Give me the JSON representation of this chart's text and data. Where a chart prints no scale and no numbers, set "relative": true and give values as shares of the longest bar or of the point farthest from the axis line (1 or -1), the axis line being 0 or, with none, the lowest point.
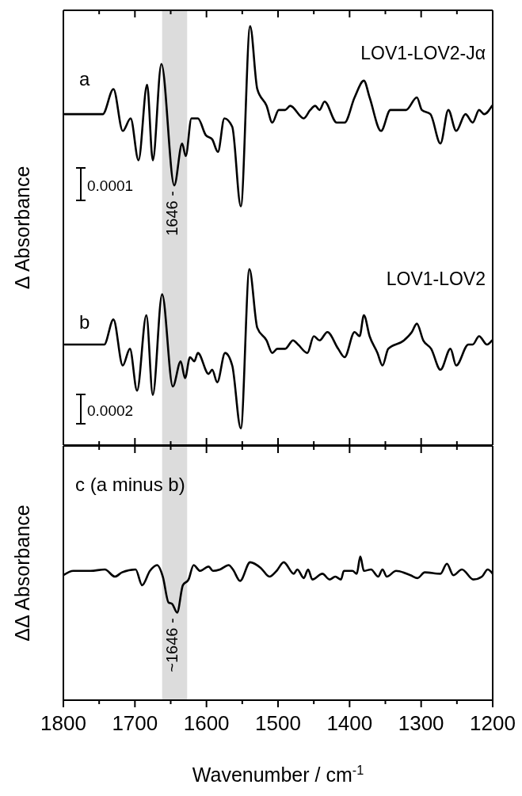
{
  "chart_data": [
    {
      "type": "line",
      "ylabel": "Δ Absorbance",
      "relative": true,
      "tick_labels": false,
      "xlim": [
        1800,
        1200
      ],
      "xticks": [
        1800,
        {
          "value": 1750,
          "label": null
        },
        1700,
        {
          "value": 1650,
          "label": null
        },
        1600,
        {
          "value": 1550,
          "label": null
        },
        1500,
        {
          "value": 1450,
          "label": null
        },
        1400,
        {
          "value": 1350,
          "label": null
        },
        1300,
        {
          "value": 1250,
          "label": null
        },
        1200
      ],
      "bands": [
        {
          "axis": "x",
          "from": 1662,
          "to": 1627,
          "color": "#dcdcdc"
        }
      ],
      "annotations": [
        "a",
        "LOV1-LOV2-Jα",
        "b",
        "LOV1-LOV2",
        "0.0001",
        "0.0002",
        {
          "text": "1646 -",
          "x": 1646,
          "y": 0.62
        }
      ],
      "series": [
        {
          "color": "#000000",
          "x": [
            1798,
            1745,
            1730,
            1717,
            1706,
            1695,
            1683,
            1675,
            1663,
            1645,
            1634,
            1629,
            1621,
            1612,
            1601,
            1592,
            1584,
            1575,
            1564,
            1552,
            1539,
            1529,
            1516,
            1508,
            1499,
            1490,
            1483,
            1464,
            1455,
            1448,
            1442,
            1435,
            1418,
            1407,
            1393,
            1380,
            1372,
            1356,
            1343,
            1321,
            1306,
            1299,
            1287,
            1273,
            1262,
            1251,
            1238,
            1228,
            1219,
            1212,
            1201
          ],
          "values": [
            0.79,
            0.79,
            0.85,
            0.75,
            0.78,
            0.68,
            0.86,
            0.68,
            0.91,
            0.62,
            0.72,
            0.69,
            0.78,
            0.78,
            0.74,
            0.73,
            0.7,
            0.78,
            0.76,
            0.57,
            1,
            0.85,
            0.81,
            0.77,
            0.8,
            0.8,
            0.81,
            0.78,
            0.8,
            0.81,
            0.8,
            0.82,
            0.77,
            0.77,
            0.83,
            0.87,
            0.83,
            0.75,
            0.8,
            0.8,
            0.83,
            0.8,
            0.79,
            0.72,
            0.8,
            0.75,
            0.79,
            0.77,
            0.8,
            0.79,
            0.81
          ]
        },
        {
          "color": "#000000",
          "x": [
            1798,
            1782,
            1743,
            1730,
            1717,
            1707,
            1697,
            1684,
            1675,
            1662,
            1647,
            1636,
            1630,
            1623,
            1617,
            1612,
            1597,
            1592,
            1585,
            1574,
            1564,
            1552,
            1540,
            1529,
            1516,
            1508,
            1501,
            1490,
            1479,
            1472,
            1459,
            1450,
            1442,
            1431,
            1416,
            1407,
            1393,
            1386,
            1380,
            1372,
            1361,
            1354,
            1346,
            1324,
            1313,
            1306,
            1297,
            1286,
            1273,
            1259,
            1251,
            1234,
            1228,
            1219,
            1208,
            1201
          ],
          "values": [
            0.24,
            0.24,
            0.24,
            0.3,
            0.19,
            0.23,
            0.13,
            0.31,
            0.12,
            0.36,
            0.14,
            0.2,
            0.16,
            0.21,
            0.2,
            0.22,
            0.17,
            0.18,
            0.15,
            0.22,
            0.19,
            0.04,
            0.42,
            0.28,
            0.25,
            0.22,
            0.23,
            0.23,
            0.25,
            0.24,
            0.22,
            0.26,
            0.25,
            0.27,
            0.23,
            0.21,
            0.27,
            0.26,
            0.31,
            0.26,
            0.22,
            0.19,
            0.23,
            0.25,
            0.27,
            0.29,
            0.25,
            0.23,
            0.18,
            0.23,
            0.19,
            0.24,
            0.24,
            0.26,
            0.24,
            0.25
          ]
        }
      ]
    },
    {
      "type": "line",
      "ylabel": "ΔΔ Absorbance",
      "xlabel": "Wavenumber / cm$^{-1}$",
      "relative": true,
      "tick_labels": "x",
      "xlim": [
        1800,
        1200
      ],
      "xticks": [
        1800,
        {
          "value": 1750,
          "label": null
        },
        1700,
        {
          "value": 1650,
          "label": null
        },
        1600,
        {
          "value": 1550,
          "label": null
        },
        1500,
        {
          "value": 1450,
          "label": null
        },
        1400,
        {
          "value": 1350,
          "label": null
        },
        1300,
        {
          "value": 1250,
          "label": null
        },
        1200
      ],
      "bands": [
        {
          "axis": "x",
          "from": 1662,
          "to": 1627,
          "color": "#dcdcdc"
        }
      ],
      "annotations": [
        "c (a minus b)",
        {
          "text": "~1646 -",
          "x": 1646,
          "y": 0.61
        }
      ],
      "series": [
        {
          "color": "#000000",
          "x": [
            1800,
            1786,
            1762,
            1742,
            1728,
            1718,
            1699,
            1690,
            1679,
            1669,
            1661,
            1653,
            1648,
            1641,
            1633,
            1625,
            1618,
            1609,
            1597,
            1591,
            1581,
            1569,
            1563,
            1553,
            1539,
            1524,
            1512,
            1502,
            1492,
            1478,
            1473,
            1464,
            1458,
            1452,
            1438,
            1428,
            1420,
            1412,
            1408,
            1396,
            1390,
            1385,
            1380,
            1370,
            1360,
            1354,
            1348,
            1335,
            1315,
            1305,
            1295,
            1273,
            1264,
            1255,
            1243,
            1227,
            1215,
            1207,
            1200
          ],
          "values": [
            0.87,
            0.9,
            0.9,
            0.91,
            0.86,
            0.89,
            0.91,
            0.8,
            0.9,
            0.94,
            0.86,
            0.68,
            0.67,
            0.61,
            0.8,
            0.84,
            0.94,
            0.9,
            0.93,
            0.9,
            0.91,
            0.94,
            0.91,
            0.83,
            0.96,
            0.92,
            0.86,
            0.9,
            0.96,
            0.88,
            0.91,
            0.85,
            0.91,
            0.84,
            0.88,
            0.84,
            0.86,
            0.84,
            0.9,
            0.9,
            0.88,
            1,
            0.9,
            0.91,
            0.86,
            0.91,
            0.86,
            0.9,
            0.87,
            0.85,
            0.89,
            0.88,
            0.95,
            0.87,
            0.91,
            0.84,
            0.86,
            0.91,
            0.88
          ]
        }
      ]
    }
  ]
}
